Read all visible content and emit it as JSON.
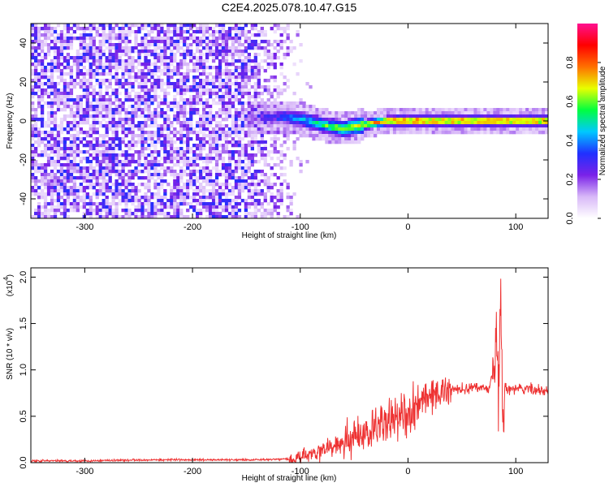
{
  "title": "C2E4.2025.078.10.47.G15",
  "chart_data": [
    {
      "type": "heatmap",
      "xlabel": "Height of straight line (km)",
      "ylabel": "Frequency (Hz)",
      "xlim": [
        -350,
        130
      ],
      "ylim": [
        -50,
        50
      ],
      "xticks": [
        -300,
        -200,
        -100,
        0,
        100
      ],
      "yticks": [
        -40,
        -20,
        0,
        20,
        40
      ],
      "colorbar": {
        "label": "Normalized spectral amplitude",
        "range": [
          0.0,
          1.0
        ],
        "ticks": [
          "0.0",
          "0.2",
          "0.4",
          "0.6",
          "0.8"
        ],
        "colors": [
          "#ffffff",
          "#d8b8f8",
          "#7a22e8",
          "#2030ff",
          "#00c8ff",
          "#00ff40",
          "#e8ff00",
          "#ff7000",
          "#ff0000",
          "#ff1090"
        ]
      },
      "signal_center_hz": [
        {
          "x": -140,
          "y": 2
        },
        {
          "x": -120,
          "y": 2
        },
        {
          "x": -100,
          "y": 1
        },
        {
          "x": -80,
          "y": -2
        },
        {
          "x": -60,
          "y": -4
        },
        {
          "x": -40,
          "y": -2
        },
        {
          "x": -20,
          "y": 0
        },
        {
          "x": 0,
          "y": 0
        },
        {
          "x": 50,
          "y": 0
        },
        {
          "x": 80,
          "y": 0
        },
        {
          "x": 130,
          "y": 0
        }
      ],
      "noise_extent_km": [
        -350,
        -90
      ],
      "grid": false
    },
    {
      "type": "line",
      "xlabel": "Height of straight line (km)",
      "ylabel": "SNR (10 * v/v)",
      "exponent_label": "(x10",
      "exponent": "4",
      "exponent_close": ")",
      "xlim": [
        -350,
        130
      ],
      "ylim": [
        0.0,
        2.1
      ],
      "xticks": [
        -300,
        -200,
        -100,
        0,
        100
      ],
      "yticks": [
        "0.0",
        "0.5",
        "1.0",
        "1.5",
        "2.0"
      ],
      "color": "#ee3333",
      "series": [
        {
          "x": [
            -350,
            -300,
            -250,
            -200,
            -150,
            -110,
            -100,
            -90,
            -80,
            -70,
            -60,
            -50,
            -40,
            -30,
            -25,
            -20,
            -10,
            0,
            10,
            20,
            30,
            40,
            50,
            60,
            70,
            75,
            80,
            82,
            84,
            86,
            88,
            90,
            100,
            110,
            120,
            130
          ],
          "y": [
            0.02,
            0.02,
            0.03,
            0.03,
            0.03,
            0.04,
            0.06,
            0.09,
            0.13,
            0.17,
            0.22,
            0.26,
            0.3,
            0.38,
            0.45,
            0.42,
            0.48,
            0.55,
            0.64,
            0.71,
            0.76,
            0.79,
            0.8,
            0.81,
            0.81,
            0.8,
            1.0,
            1.45,
            0.55,
            2.1,
            0.2,
            0.8,
            0.79,
            0.8,
            0.78,
            0.77
          ]
        }
      ],
      "grid": false
    }
  ]
}
